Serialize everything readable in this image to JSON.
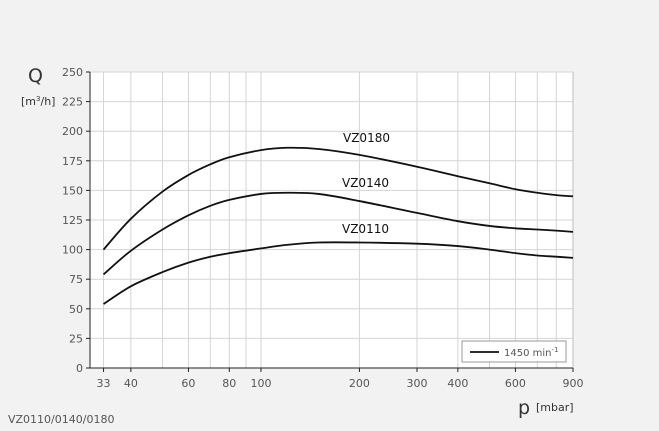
{
  "chart_data": {
    "type": "line",
    "title": "",
    "x_scale": "log",
    "xlim": [
      30,
      900
    ],
    "ylim": [
      0,
      250
    ],
    "x_ticks": [
      33,
      40,
      60,
      80,
      100,
      200,
      300,
      400,
      600,
      900
    ],
    "y_ticks": [
      0,
      25,
      50,
      75,
      100,
      125,
      150,
      175,
      200,
      225,
      250
    ],
    "x_minor_grid": [
      50,
      70,
      90,
      500,
      700,
      800
    ],
    "grid": true,
    "xlabel": {
      "symbol": "p",
      "unit": "[mbar]"
    },
    "ylabel": {
      "symbol": "Q",
      "unit_pre": "[m",
      "unit_sup": "3",
      "unit_post": "/h]"
    },
    "legend": {
      "position": "bottom-right",
      "label": "1450 min",
      "sup": "-1"
    },
    "series": [
      {
        "name": "VZ0180",
        "color": "#111111",
        "x": [
          33,
          40,
          50,
          60,
          70,
          80,
          100,
          120,
          150,
          200,
          300,
          400,
          500,
          600,
          700,
          800,
          900
        ],
        "y": [
          100,
          126,
          149,
          163,
          172,
          178,
          184,
          186,
          185,
          180,
          170,
          162,
          156,
          151,
          148,
          146,
          145
        ]
      },
      {
        "name": "VZ0140",
        "color": "#111111",
        "x": [
          33,
          40,
          50,
          60,
          70,
          80,
          100,
          120,
          150,
          200,
          300,
          400,
          500,
          600,
          700,
          800,
          900
        ],
        "y": [
          79,
          99,
          117,
          129,
          137,
          142,
          147,
          148,
          147,
          141,
          131,
          124,
          120,
          118,
          117,
          116,
          115
        ]
      },
      {
        "name": "VZ0110",
        "color": "#111111",
        "x": [
          33,
          40,
          50,
          60,
          70,
          80,
          100,
          120,
          150,
          200,
          300,
          400,
          500,
          600,
          700,
          800,
          900
        ],
        "y": [
          54,
          69,
          81,
          89,
          94,
          97,
          101,
          104,
          106,
          106,
          105,
          103,
          100,
          97,
          95,
          94,
          93
        ]
      }
    ],
    "annotations": [
      "VZ0180",
      "VZ0140",
      "VZ0110"
    ]
  },
  "footer": {
    "model_caption": "VZ0110/0140/0180"
  }
}
